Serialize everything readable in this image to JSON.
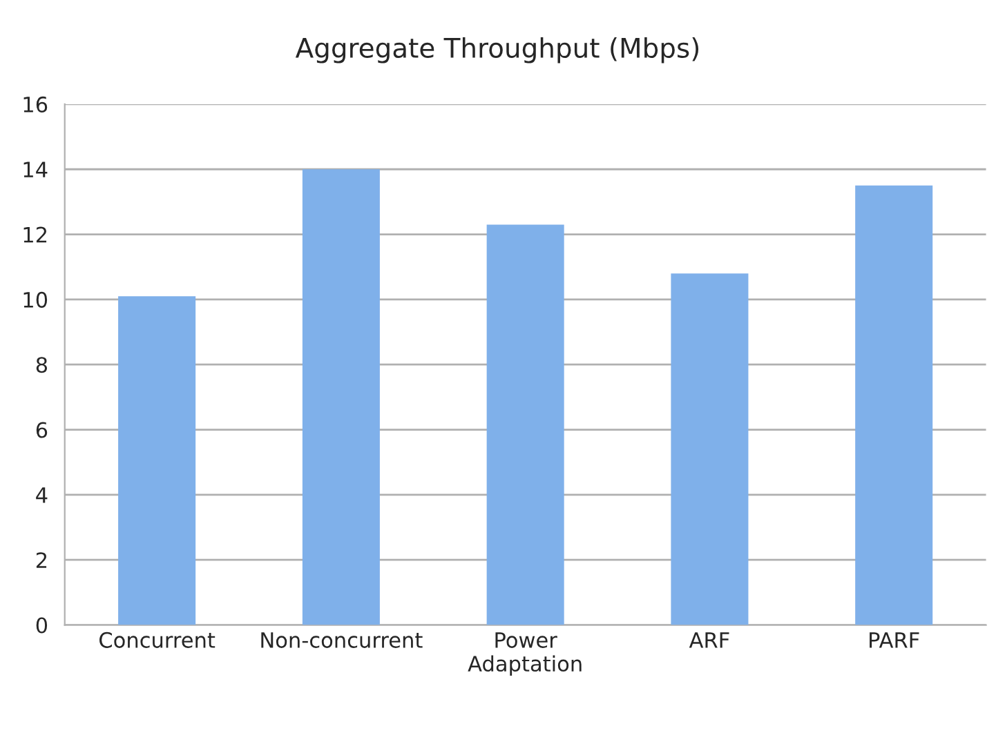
{
  "chart_data": {
    "type": "bar",
    "title": "Aggregate Throughput (Mbps)",
    "categories": [
      "Concurrent",
      "Non-concurrent",
      "Power\nAdaptation",
      "ARF",
      "PARF"
    ],
    "values": [
      10.1,
      14.0,
      12.3,
      10.8,
      13.5
    ],
    "color": "#7fb0ea",
    "ylim": [
      0,
      16
    ],
    "yticks": [
      0,
      2,
      4,
      6,
      8,
      10,
      12,
      14,
      16
    ],
    "grid": "y",
    "legend": false
  }
}
